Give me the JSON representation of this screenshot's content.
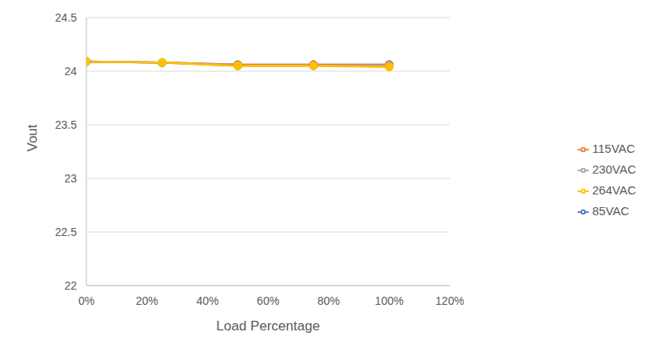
{
  "chart_data": {
    "type": "line",
    "x_label": "Load Percentage",
    "y_label": "Vout",
    "x": [
      0,
      25,
      50,
      75,
      100
    ],
    "series": [
      {
        "name": "85VAC",
        "color": "#4472c4",
        "values": [
          24.09,
          24.08,
          24.06,
          24.06,
          24.06
        ]
      },
      {
        "name": "115VAC",
        "color": "#ed7d31",
        "values": [
          24.09,
          24.08,
          24.06,
          24.06,
          24.06
        ]
      },
      {
        "name": "230VAC",
        "color": "#a5a5a5",
        "values": [
          24.09,
          24.08,
          24.05,
          24.05,
          24.05
        ]
      },
      {
        "name": "264VAC",
        "color": "#ffc000",
        "values": [
          24.09,
          24.08,
          24.05,
          24.05,
          24.04
        ]
      }
    ],
    "xlim": [
      0,
      120
    ],
    "xticks": [
      {
        "value": 0,
        "label": "0%"
      },
      {
        "value": 20,
        "label": "20%"
      },
      {
        "value": 40,
        "label": "40%"
      },
      {
        "value": 60,
        "label": "60%"
      },
      {
        "value": 80,
        "label": "80%"
      },
      {
        "value": 100,
        "label": "100%"
      },
      {
        "value": 120,
        "label": "120%"
      }
    ],
    "ylim": [
      22,
      24.5
    ],
    "yticks": [
      22,
      22.5,
      23,
      23.5,
      24,
      24.5
    ],
    "grid": true,
    "legend": "right",
    "marker": "circle",
    "line_style": "solid"
  }
}
